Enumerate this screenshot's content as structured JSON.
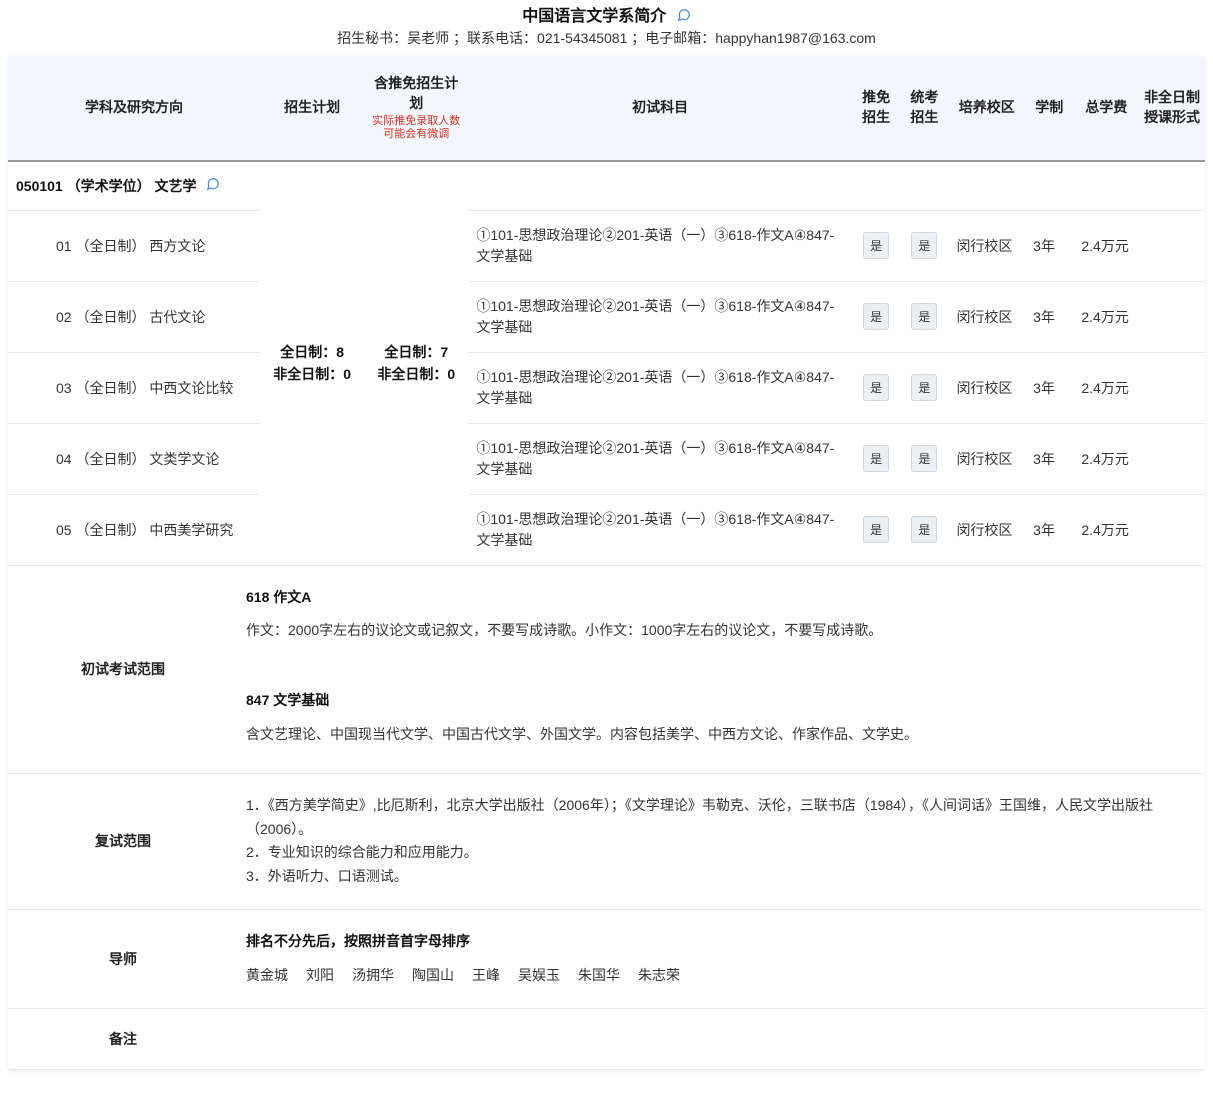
{
  "header": {
    "title": "中国语言文学系简介",
    "subtitle": "招生秘书：吴老师 ；联系电话：021-54345081 ；电子邮箱：happyhan1987@163.com"
  },
  "columns": {
    "direction": "学科及研究方向",
    "plan": "招生计划",
    "inc_plan": "含推免招生计划",
    "inc_plan_note": "实际推免录取人数可能会有微调",
    "subjects": "初试科目",
    "rec": "推免招生",
    "exam": "统考招生",
    "campus": "培养校区",
    "duration": "学制",
    "fee": "总学费",
    "pt": "非全日制授课形式"
  },
  "category": {
    "code_label": "050101 （学术学位） 文艺学"
  },
  "plan_merge": "全日制：8\n非全日制：0",
  "inc_merge": "全日制：7\n非全日制：0",
  "subject_text": "①101-思想政治理论②201-英语（一）③618-作文A④847-文学基础",
  "badge_yes": "是",
  "campus": "闵行校区",
  "duration_val": "3年",
  "fee_val": "2.4万元",
  "directions": {
    "d1": "01 （全日制） 西方文论",
    "d2": "02 （全日制） 古代文论",
    "d3": "03 （全日制） 中西文论比较",
    "d4": "04 （全日制） 文类学文论",
    "d5": "05 （全日制） 中西美学研究"
  },
  "scope": {
    "label": "初试考试范围",
    "s1_title": "618 作文A",
    "s1_body": "作文：2000字左右的议论文或记叙文，不要写成诗歌。小作文：1000字左右的议论文，不要写成诗歌。",
    "s2_title": "847 文学基础",
    "s2_body": "含文艺理论、中国现当代文学、中国古代文学、外国文学。内容包括美学、中西方文论、作家作品、文学史。"
  },
  "fushi": {
    "label": "复试范围",
    "body": "1．《西方美学简史》,比厄斯利，北京大学出版社（2006年）；《文学理论》韦勒克、沃伦，三联书店（1984），《人间词话》王国维，人民文学出版社（2006）。\n2．专业知识的综合能力和应用能力。\n3．外语听力、口语测试。"
  },
  "advisor": {
    "label": "导师",
    "note": "排名不分先后，按照拼音首字母排序",
    "names": [
      "黄金城",
      "刘阳",
      "汤拥华",
      "陶国山",
      "王峰",
      "吴娱玉",
      "朱国华",
      "朱志荣"
    ]
  },
  "note": {
    "label": "备注",
    "body": ""
  }
}
